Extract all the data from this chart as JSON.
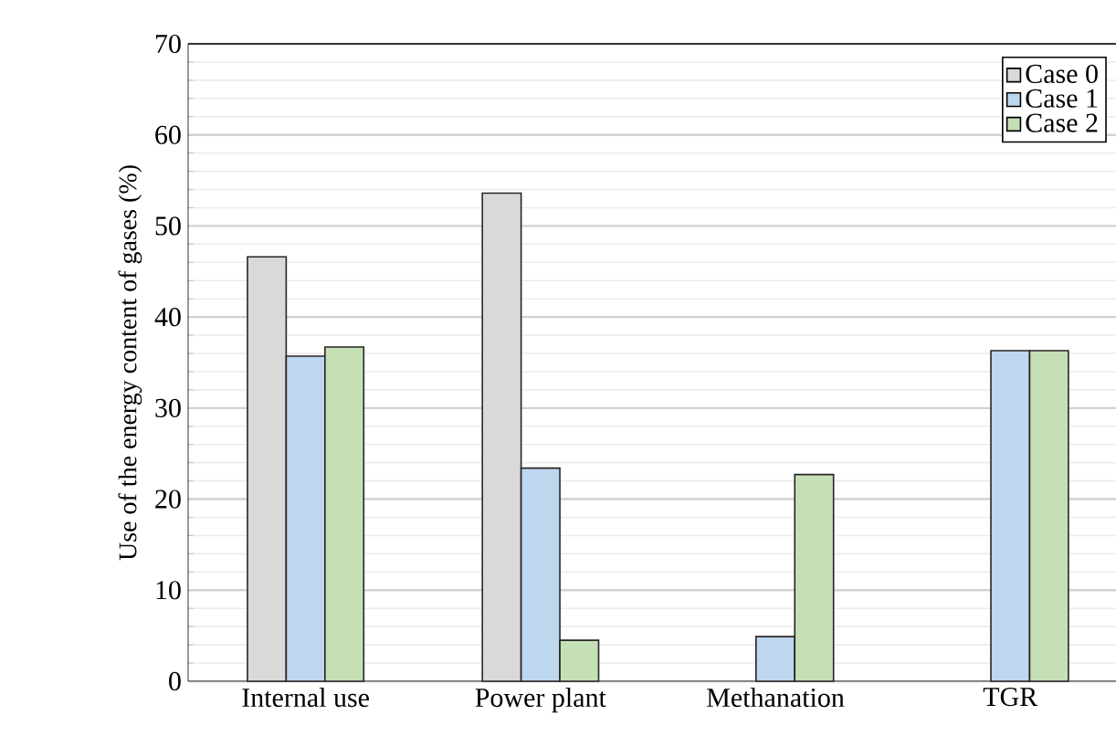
{
  "chart_data": {
    "type": "bar",
    "ylabel": "Use of the energy content of gases (%)",
    "categories": [
      "Internal use",
      "Power plant",
      "Methanation",
      "TGR"
    ],
    "series": [
      {
        "name": "Case 0",
        "color": "#d9d9d9",
        "values": [
          46.6,
          53.6,
          null,
          null
        ]
      },
      {
        "name": "Case 1",
        "color": "#bdd7ee",
        "values": [
          35.7,
          23.4,
          4.9,
          36.3
        ]
      },
      {
        "name": "Case 2",
        "color": "#c5e0b4",
        "values": [
          36.7,
          4.5,
          22.7,
          36.3
        ]
      }
    ],
    "ylim": [
      0,
      70
    ],
    "yticks": [
      0,
      10,
      20,
      30,
      40,
      50,
      60,
      70
    ],
    "grid": "y",
    "legend": "top right"
  }
}
